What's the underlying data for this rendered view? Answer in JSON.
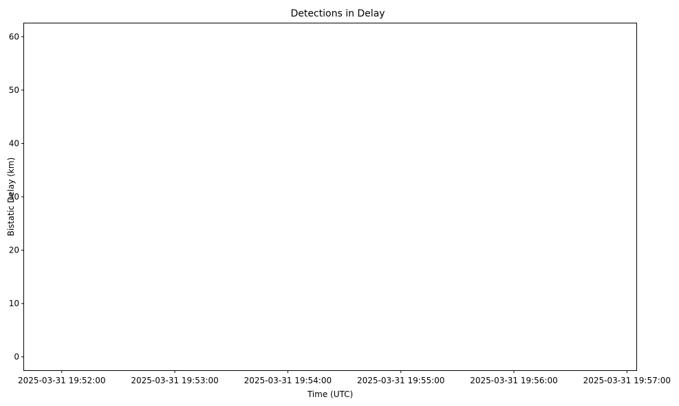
{
  "chart_data": {
    "type": "scatter",
    "title": "Detections in Delay",
    "xlabel": "Time (UTC)",
    "ylabel": "Bistatic Delay (km)",
    "marker": "x",
    "color": "#1f77b4",
    "grid": false,
    "xlim": [
      "2025-03-31 19:51:40",
      "2025-03-31 19:57:05"
    ],
    "ylim": [
      -2.5,
      62.5
    ],
    "xticks": [
      "2025-03-31 19:52:00",
      "2025-03-31 19:53:00",
      "2025-03-31 19:54:00",
      "2025-03-31 19:55:00",
      "2025-03-31 19:56:00",
      "2025-03-31 19:57:00"
    ],
    "yticks": [
      0,
      10,
      20,
      30,
      40,
      50,
      60
    ],
    "x": [],
    "y": []
  }
}
